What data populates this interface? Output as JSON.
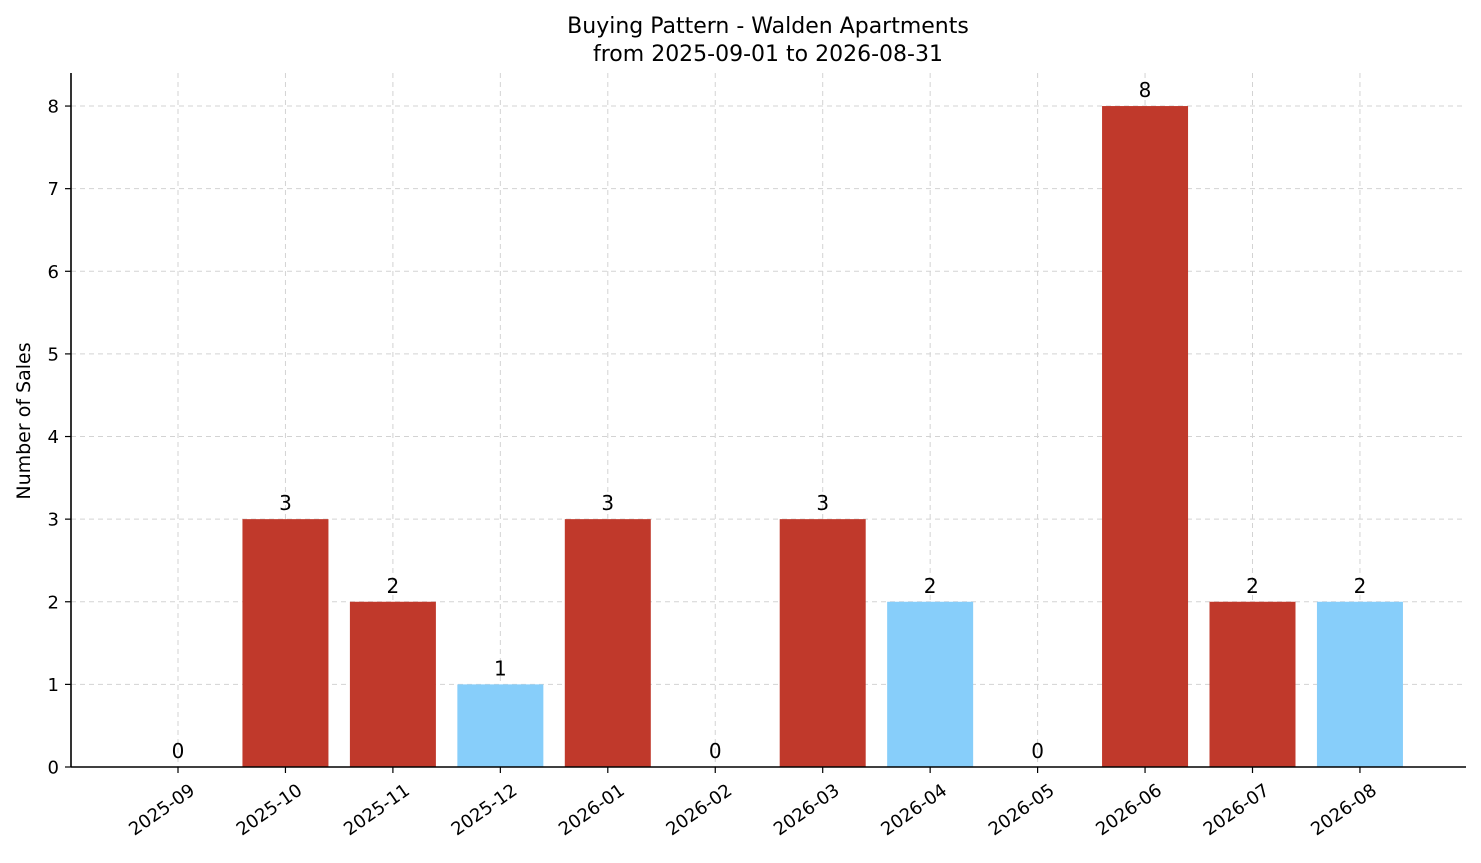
{
  "chart_data": {
    "type": "bar",
    "title": "Buying Pattern - Walden Apartments",
    "subtitle": "from 2025-09-01 to 2026-08-31",
    "xlabel": "",
    "ylabel": "Number of Sales",
    "categories": [
      "2025-09",
      "2025-10",
      "2025-11",
      "2025-12",
      "2026-01",
      "2026-02",
      "2026-03",
      "2026-04",
      "2026-05",
      "2026-06",
      "2026-07",
      "2026-08"
    ],
    "values": [
      0,
      3,
      2,
      1,
      3,
      0,
      3,
      2,
      0,
      8,
      2,
      2
    ],
    "bar_colors": [
      "#c0392b",
      "#c0392b",
      "#c0392b",
      "#87cefa",
      "#c0392b",
      "#c0392b",
      "#c0392b",
      "#87cefa",
      "#c0392b",
      "#c0392b",
      "#c0392b",
      "#87cefa"
    ],
    "yticks": [
      0,
      1,
      2,
      3,
      4,
      5,
      6,
      7,
      8
    ],
    "ylim": [
      0,
      8.4
    ],
    "grid": true,
    "legend": "none"
  }
}
